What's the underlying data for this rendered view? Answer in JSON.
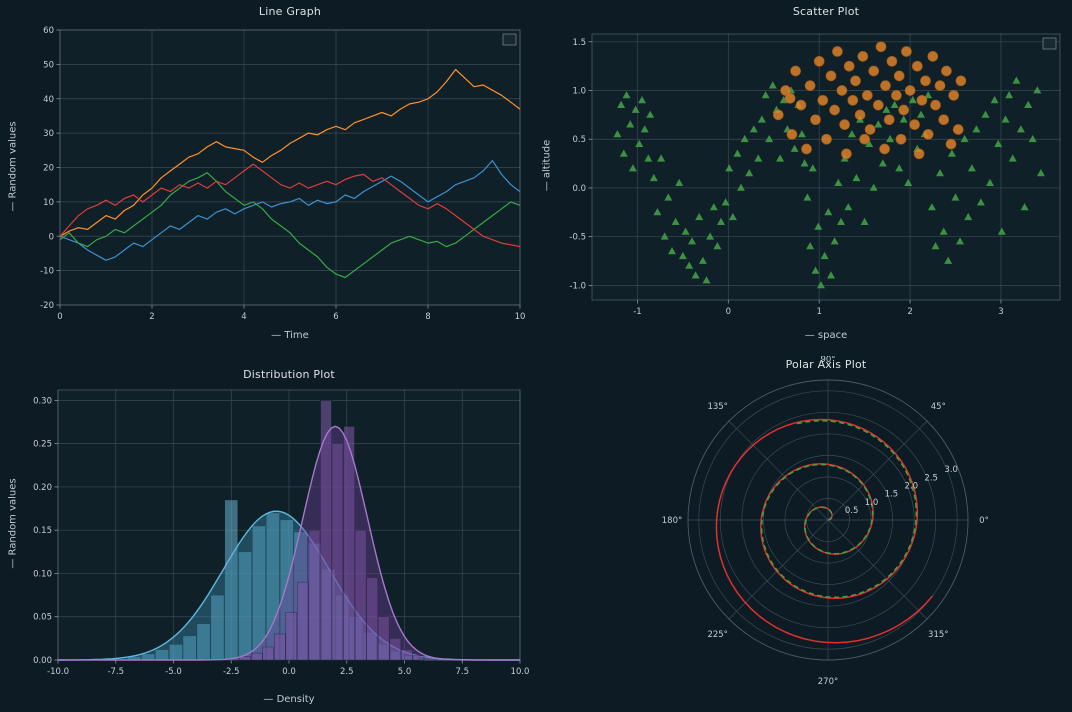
{
  "theme": {
    "page_bg": "#0d1b24",
    "panel_bg": "#0f2029",
    "grid": "#3a4a54",
    "spine": "#8b979e",
    "tick": "#8b979e",
    "text": "#c6ced2",
    "title": "#dce2e5",
    "legend_bg": "#1a2a34"
  },
  "chart_data": [
    {
      "type": "line",
      "title": "Line Graph",
      "xlabel": "— Time",
      "ylabel": "— Random values",
      "xlim": [
        0,
        10
      ],
      "ylim": [
        -20,
        60
      ],
      "xticks": [
        0,
        2,
        4,
        6,
        8,
        10
      ],
      "yticks": [
        -20,
        -10,
        0,
        10,
        20,
        30,
        40,
        50,
        60
      ],
      "x_start": 0,
      "x_step": 0.2,
      "legend_box": true,
      "series": [
        {
          "name": "blue",
          "color": "#3f8fce",
          "y": [
            0,
            -1,
            -2,
            -4,
            -5.5,
            -7,
            -6,
            -4,
            -2,
            -3,
            -1,
            1,
            3,
            2,
            4,
            6,
            5,
            7,
            8,
            6.5,
            8,
            9,
            10,
            8.5,
            9.5,
            10,
            11,
            9,
            10.5,
            9.5,
            10,
            12,
            11,
            13,
            14.5,
            16,
            17.5,
            16,
            14,
            12,
            10,
            11.5,
            13,
            15,
            16,
            17,
            19,
            22,
            18,
            15,
            13
          ]
        },
        {
          "name": "orange",
          "color": "#ff9029",
          "y": [
            0,
            1.5,
            2.5,
            2,
            4,
            6,
            5,
            7.5,
            9,
            12,
            14,
            17,
            19,
            21,
            23,
            24,
            26,
            27.5,
            26,
            25.5,
            25,
            23,
            21.5,
            23.5,
            25,
            27,
            28.5,
            30,
            29.5,
            31,
            32,
            31,
            33,
            34,
            35,
            36,
            35,
            37,
            38.5,
            39,
            40,
            42,
            45,
            48.5,
            46,
            43.5,
            44,
            42.5,
            41,
            39,
            37
          ]
        },
        {
          "name": "green",
          "color": "#3aa746",
          "y": [
            -1,
            1,
            -2,
            -3,
            -1,
            0,
            2,
            1,
            3,
            5,
            7,
            9,
            12,
            14,
            16,
            17,
            18.5,
            16,
            13,
            11,
            9,
            10,
            8,
            5,
            3,
            1,
            -2,
            -4,
            -6,
            -9,
            -11,
            -12,
            -10,
            -8,
            -6,
            -4,
            -2,
            -1,
            0,
            -1,
            -2,
            -1.5,
            -3,
            -2,
            0,
            2,
            4,
            6,
            8,
            10,
            9
          ]
        },
        {
          "name": "red",
          "color": "#dd3c3c",
          "y": [
            0,
            3,
            6,
            8,
            9,
            10.5,
            9,
            11,
            12,
            10,
            12,
            14,
            13,
            15,
            14,
            15.5,
            14,
            16,
            15,
            17,
            19,
            21,
            19,
            17,
            15,
            14,
            15.5,
            14,
            15,
            16,
            15,
            16.5,
            17.5,
            18,
            16,
            17,
            15,
            13,
            11,
            9,
            8,
            9.5,
            8,
            6,
            4,
            2,
            0,
            -1,
            -2,
            -2.5,
            -3
          ]
        }
      ]
    },
    {
      "type": "scatter",
      "title": "Scatter Plot",
      "xlabel": "— space",
      "ylabel": "— altitude",
      "xlim": [
        -1.5,
        3.65
      ],
      "ylim": [
        -1.15,
        1.58
      ],
      "xticks": [
        -1,
        0,
        1,
        2,
        3
      ],
      "yticks": [
        -1.0,
        -0.5,
        0.0,
        0.5,
        1.0,
        1.5
      ],
      "xdec": 0,
      "ydec": 1,
      "legend_box": true,
      "triangle_series": {
        "name": "green-triangles",
        "color": "#43a047",
        "points": [
          [
            -1.22,
            0.55
          ],
          [
            -1.18,
            0.85
          ],
          [
            -1.15,
            0.35
          ],
          [
            -1.12,
            0.95
          ],
          [
            -1.08,
            0.65
          ],
          [
            -1.05,
            0.2
          ],
          [
            -1.02,
            0.8
          ],
          [
            -0.98,
            0.45
          ],
          [
            -0.95,
            0.9
          ],
          [
            -0.92,
            0.6
          ],
          [
            -0.88,
            0.3
          ],
          [
            -0.86,
            0.75
          ],
          [
            -0.82,
            0.1
          ],
          [
            -0.78,
            -0.25
          ],
          [
            -0.74,
            0.3
          ],
          [
            -0.7,
            -0.5
          ],
          [
            -0.66,
            -0.1
          ],
          [
            -0.62,
            -0.65
          ],
          [
            -0.58,
            -0.35
          ],
          [
            -0.54,
            0.05
          ],
          [
            -0.5,
            -0.7
          ],
          [
            -0.47,
            -0.45
          ],
          [
            -0.43,
            -0.8
          ],
          [
            -0.4,
            -0.55
          ],
          [
            -0.36,
            -0.9
          ],
          [
            -0.32,
            -0.3
          ],
          [
            -0.28,
            -0.75
          ],
          [
            -0.24,
            -0.95
          ],
          [
            -0.2,
            -0.5
          ],
          [
            -0.16,
            -0.2
          ],
          [
            -0.12,
            -0.6
          ],
          [
            -0.08,
            -0.35
          ],
          [
            -0.03,
            -0.15
          ],
          [
            0.01,
            0.2
          ],
          [
            0.05,
            -0.3
          ],
          [
            0.1,
            0.35
          ],
          [
            0.14,
            0.0
          ],
          [
            0.18,
            0.5
          ],
          [
            0.23,
            0.15
          ],
          [
            0.28,
            0.6
          ],
          [
            0.33,
            0.3
          ],
          [
            0.37,
            0.7
          ],
          [
            0.41,
            0.95
          ],
          [
            0.45,
            0.5
          ],
          [
            0.49,
            1.05
          ],
          [
            0.53,
            0.8
          ],
          [
            0.57,
            0.3
          ],
          [
            0.61,
            0.9
          ],
          [
            0.65,
            0.6
          ],
          [
            0.69,
            1.0
          ],
          [
            0.73,
            0.4
          ],
          [
            0.77,
            0.85
          ],
          [
            0.81,
            0.55
          ],
          [
            0.84,
            0.25
          ],
          [
            0.87,
            -0.1
          ],
          [
            0.9,
            -0.6
          ],
          [
            0.93,
            0.2
          ],
          [
            0.96,
            -0.85
          ],
          [
            0.99,
            -0.4
          ],
          [
            1.02,
            -1.0
          ],
          [
            1.06,
            -0.7
          ],
          [
            1.1,
            -0.25
          ],
          [
            1.13,
            -0.9
          ],
          [
            1.17,
            -0.55
          ],
          [
            1.21,
            0.05
          ],
          [
            1.24,
            -0.35
          ],
          [
            1.28,
            0.3
          ],
          [
            1.32,
            -0.2
          ],
          [
            1.36,
            0.55
          ],
          [
            1.41,
            0.1
          ],
          [
            1.45,
            0.7
          ],
          [
            1.5,
            -0.35
          ],
          [
            1.55,
            0.45
          ],
          [
            1.6,
            0.0
          ],
          [
            1.65,
            0.65
          ],
          [
            1.7,
            0.25
          ],
          [
            1.74,
            0.8
          ],
          [
            1.78,
            0.5
          ],
          [
            1.83,
            0.85
          ],
          [
            1.88,
            0.2
          ],
          [
            1.93,
            0.7
          ],
          [
            1.98,
            0.05
          ],
          [
            2.03,
            0.9
          ],
          [
            2.08,
            0.4
          ],
          [
            2.12,
            0.75
          ],
          [
            2.16,
            0.55
          ],
          [
            2.2,
            0.95
          ],
          [
            2.24,
            -0.2
          ],
          [
            2.28,
            -0.6
          ],
          [
            2.33,
            0.15
          ],
          [
            2.37,
            -0.45
          ],
          [
            2.42,
            -0.75
          ],
          [
            2.46,
            0.35
          ],
          [
            2.5,
            -0.1
          ],
          [
            2.55,
            -0.55
          ],
          [
            2.6,
            0.5
          ],
          [
            2.64,
            -0.3
          ],
          [
            2.68,
            0.2
          ],
          [
            2.73,
            0.6
          ],
          [
            2.78,
            -0.15
          ],
          [
            2.83,
            0.75
          ],
          [
            2.88,
            0.05
          ],
          [
            2.93,
            0.9
          ],
          [
            2.97,
            0.45
          ],
          [
            3.01,
            -0.45
          ],
          [
            3.05,
            0.7
          ],
          [
            3.09,
            0.95
          ],
          [
            3.13,
            0.3
          ],
          [
            3.17,
            1.1
          ],
          [
            3.22,
            0.6
          ],
          [
            3.26,
            -0.2
          ],
          [
            3.3,
            0.85
          ],
          [
            3.35,
            0.5
          ],
          [
            3.4,
            1.0
          ],
          [
            3.44,
            0.15
          ]
        ]
      },
      "circle_series": {
        "name": "orange-circles",
        "color": "#e8872a",
        "edge": "#a85d12",
        "points": [
          [
            0.55,
            0.75
          ],
          [
            0.63,
            1.0
          ],
          [
            0.7,
            0.55
          ],
          [
            0.74,
            1.2
          ],
          [
            0.8,
            0.85
          ],
          [
            0.86,
            0.4
          ],
          [
            0.9,
            1.05
          ],
          [
            0.96,
            0.7
          ],
          [
            1.0,
            1.3
          ],
          [
            1.04,
            0.9
          ],
          [
            1.08,
            0.5
          ],
          [
            1.13,
            1.15
          ],
          [
            1.17,
            0.8
          ],
          [
            1.2,
            1.4
          ],
          [
            1.25,
            1.0
          ],
          [
            1.28,
            0.65
          ],
          [
            1.33,
            1.25
          ],
          [
            1.37,
            0.9
          ],
          [
            1.4,
            1.1
          ],
          [
            1.45,
            0.75
          ],
          [
            1.48,
            1.35
          ],
          [
            1.53,
            0.95
          ],
          [
            1.56,
            0.6
          ],
          [
            1.6,
            1.2
          ],
          [
            1.65,
            0.85
          ],
          [
            1.68,
            1.45
          ],
          [
            1.73,
            1.05
          ],
          [
            1.77,
            0.7
          ],
          [
            1.8,
            1.3
          ],
          [
            1.85,
            0.95
          ],
          [
            1.88,
            1.15
          ],
          [
            1.93,
            0.8
          ],
          [
            1.96,
            1.4
          ],
          [
            2.0,
            1.0
          ],
          [
            2.05,
            0.65
          ],
          [
            2.08,
            1.25
          ],
          [
            2.13,
            0.9
          ],
          [
            2.17,
            1.1
          ],
          [
            2.2,
            0.55
          ],
          [
            2.25,
            1.35
          ],
          [
            2.28,
            0.85
          ],
          [
            2.33,
            1.05
          ],
          [
            2.37,
            0.7
          ],
          [
            2.4,
            1.2
          ],
          [
            2.45,
            0.45
          ],
          [
            2.48,
            0.95
          ],
          [
            2.53,
            0.6
          ],
          [
            2.56,
            1.1
          ],
          [
            1.3,
            0.35
          ],
          [
            1.72,
            0.4
          ],
          [
            2.1,
            0.35
          ],
          [
            0.68,
            0.92
          ],
          [
            1.5,
            0.5
          ],
          [
            1.9,
            0.5
          ]
        ]
      }
    },
    {
      "type": "distribution",
      "title": "Distribution Plot",
      "xlabel": "— Density",
      "ylabel": "— Random values",
      "xlim": [
        -10,
        10
      ],
      "ylim": [
        0,
        0.312
      ],
      "xticks": [
        -10,
        -7.5,
        -5,
        -2.5,
        0,
        2.5,
        5,
        7.5,
        10
      ],
      "yticks": [
        0,
        0.05,
        0.1,
        0.15,
        0.2,
        0.25,
        0.3
      ],
      "xdec": 1,
      "ydec": 2,
      "groups": [
        {
          "name": "blue",
          "curve_color": "#5fb7e0",
          "fill_color": "#3a87a8",
          "bar_color": "#6fbede",
          "mean": -0.55,
          "sd": 2.3,
          "peak": 0.172,
          "bar_width": 0.6,
          "bars": [
            [
              -6.7,
              0.004
            ],
            [
              -6.1,
              0.007
            ],
            [
              -5.5,
              0.012
            ],
            [
              -4.9,
              0.018
            ],
            [
              -4.3,
              0.028
            ],
            [
              -3.7,
              0.042
            ],
            [
              -3.1,
              0.075
            ],
            [
              -2.5,
              0.185
            ],
            [
              -1.9,
              0.125
            ],
            [
              -1.3,
              0.155
            ],
            [
              -0.7,
              0.17
            ],
            [
              -0.1,
              0.162
            ],
            [
              0.5,
              0.148
            ],
            [
              1.1,
              0.135
            ],
            [
              1.7,
              0.105
            ],
            [
              2.3,
              0.075
            ],
            [
              2.9,
              0.05
            ],
            [
              3.5,
              0.032
            ],
            [
              4.1,
              0.018
            ],
            [
              4.7,
              0.01
            ],
            [
              5.3,
              0.005
            ]
          ]
        },
        {
          "name": "purple",
          "curve_color": "#a678cc",
          "fill_color": "#6d4196",
          "bar_color": "#8a5fb0",
          "mean": 2.0,
          "sd": 1.4,
          "peak": 0.27,
          "bar_width": 0.5,
          "bars": [
            [
              -1.9,
              0.004
            ],
            [
              -1.4,
              0.008
            ],
            [
              -0.9,
              0.015
            ],
            [
              -0.4,
              0.03
            ],
            [
              0.1,
              0.055
            ],
            [
              0.6,
              0.09
            ],
            [
              1.1,
              0.15
            ],
            [
              1.6,
              0.3
            ],
            [
              2.1,
              0.25
            ],
            [
              2.6,
              0.27
            ],
            [
              3.1,
              0.15
            ],
            [
              3.6,
              0.095
            ],
            [
              4.1,
              0.05
            ],
            [
              4.6,
              0.025
            ],
            [
              5.1,
              0.012
            ],
            [
              5.6,
              0.005
            ]
          ]
        }
      ]
    },
    {
      "type": "polar",
      "title": "Polar Axis Plot",
      "rticks": [
        0.5,
        1.0,
        1.5,
        2.0,
        2.5,
        3.0
      ],
      "r_bound": 3.25,
      "angle_labels": [
        "0°",
        "45°",
        "90°",
        "135°",
        "180°",
        "225°",
        "270°",
        "315°"
      ],
      "spirals": [
        {
          "name": "red-spiral",
          "color": "#e03030",
          "style": "solid",
          "turns": 2.9,
          "r_end": 3.0
        },
        {
          "name": "green-spiral",
          "color": "#41a33f",
          "style": "dashed",
          "turns": 2.3,
          "r_end": 2.35
        }
      ]
    }
  ]
}
